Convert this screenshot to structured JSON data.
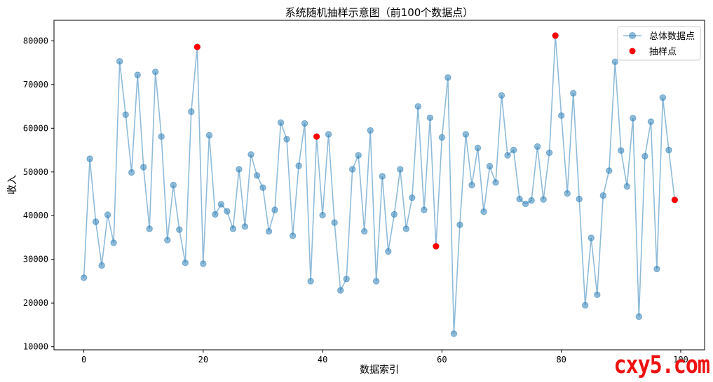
{
  "chart_data": {
    "type": "line",
    "title": "系统随机抽样示意图（前100个数据点）",
    "xlabel": "数据索引",
    "ylabel": "收入",
    "xlim": [
      -5,
      104
    ],
    "ylim": [
      9300,
      84700
    ],
    "xticks": [
      0,
      20,
      40,
      60,
      80,
      100
    ],
    "yticks": [
      10000,
      20000,
      30000,
      40000,
      50000,
      60000,
      70000,
      80000
    ],
    "grid": false,
    "legend_position": "top-right",
    "series": [
      {
        "name": "总体数据点",
        "color": "#1f77b4",
        "marker": "circle",
        "style": "line",
        "x": [
          0,
          1,
          2,
          3,
          4,
          5,
          6,
          7,
          8,
          9,
          10,
          11,
          12,
          13,
          14,
          15,
          16,
          17,
          18,
          19,
          20,
          21,
          22,
          23,
          24,
          25,
          26,
          27,
          28,
          29,
          30,
          31,
          32,
          33,
          34,
          35,
          36,
          37,
          38,
          39,
          40,
          41,
          42,
          43,
          44,
          45,
          46,
          47,
          48,
          49,
          50,
          51,
          52,
          53,
          54,
          55,
          56,
          57,
          58,
          59,
          60,
          61,
          62,
          63,
          64,
          65,
          66,
          67,
          68,
          69,
          70,
          71,
          72,
          73,
          74,
          75,
          76,
          77,
          78,
          79,
          80,
          81,
          82,
          83,
          84,
          85,
          86,
          87,
          88,
          89,
          90,
          91,
          92,
          93,
          94,
          95,
          96,
          97,
          98,
          99
        ],
        "y": [
          25800,
          53000,
          38600,
          28600,
          40200,
          33800,
          75300,
          63100,
          49900,
          72200,
          51100,
          37000,
          72900,
          58100,
          34400,
          47000,
          36800,
          29200,
          63800,
          78600,
          29000,
          58400,
          40300,
          42600,
          41000,
          37000,
          50600,
          37500,
          54000,
          49200,
          46400,
          36400,
          41300,
          61300,
          57500,
          35400,
          51400,
          61100,
          25000,
          58100,
          40100,
          58600,
          38400,
          22900,
          25500,
          50600,
          53800,
          36400,
          59500,
          25000,
          49000,
          31800,
          40300,
          50600,
          37000,
          44100,
          65000,
          41300,
          62400,
          33000,
          57900,
          71600,
          13000,
          37900,
          58600,
          47000,
          55500,
          40900,
          51300,
          47600,
          67500,
          53800,
          55000,
          43800,
          42700,
          43500,
          55800,
          43700,
          54400,
          81200,
          62900,
          45100,
          68000,
          43800,
          19500,
          34900,
          21900,
          44600,
          50300,
          75200,
          54900,
          46700,
          62300,
          16900,
          53600,
          61500,
          27800,
          67000,
          55000,
          43600
        ]
      },
      {
        "name": "抽样点",
        "color": "#ff0000",
        "marker": "circle",
        "style": "scatter",
        "x": [
          19,
          39,
          59,
          79,
          99
        ],
        "y": [
          78600,
          58100,
          33000,
          81200,
          43600
        ]
      }
    ]
  },
  "watermark": "cxy5.com"
}
